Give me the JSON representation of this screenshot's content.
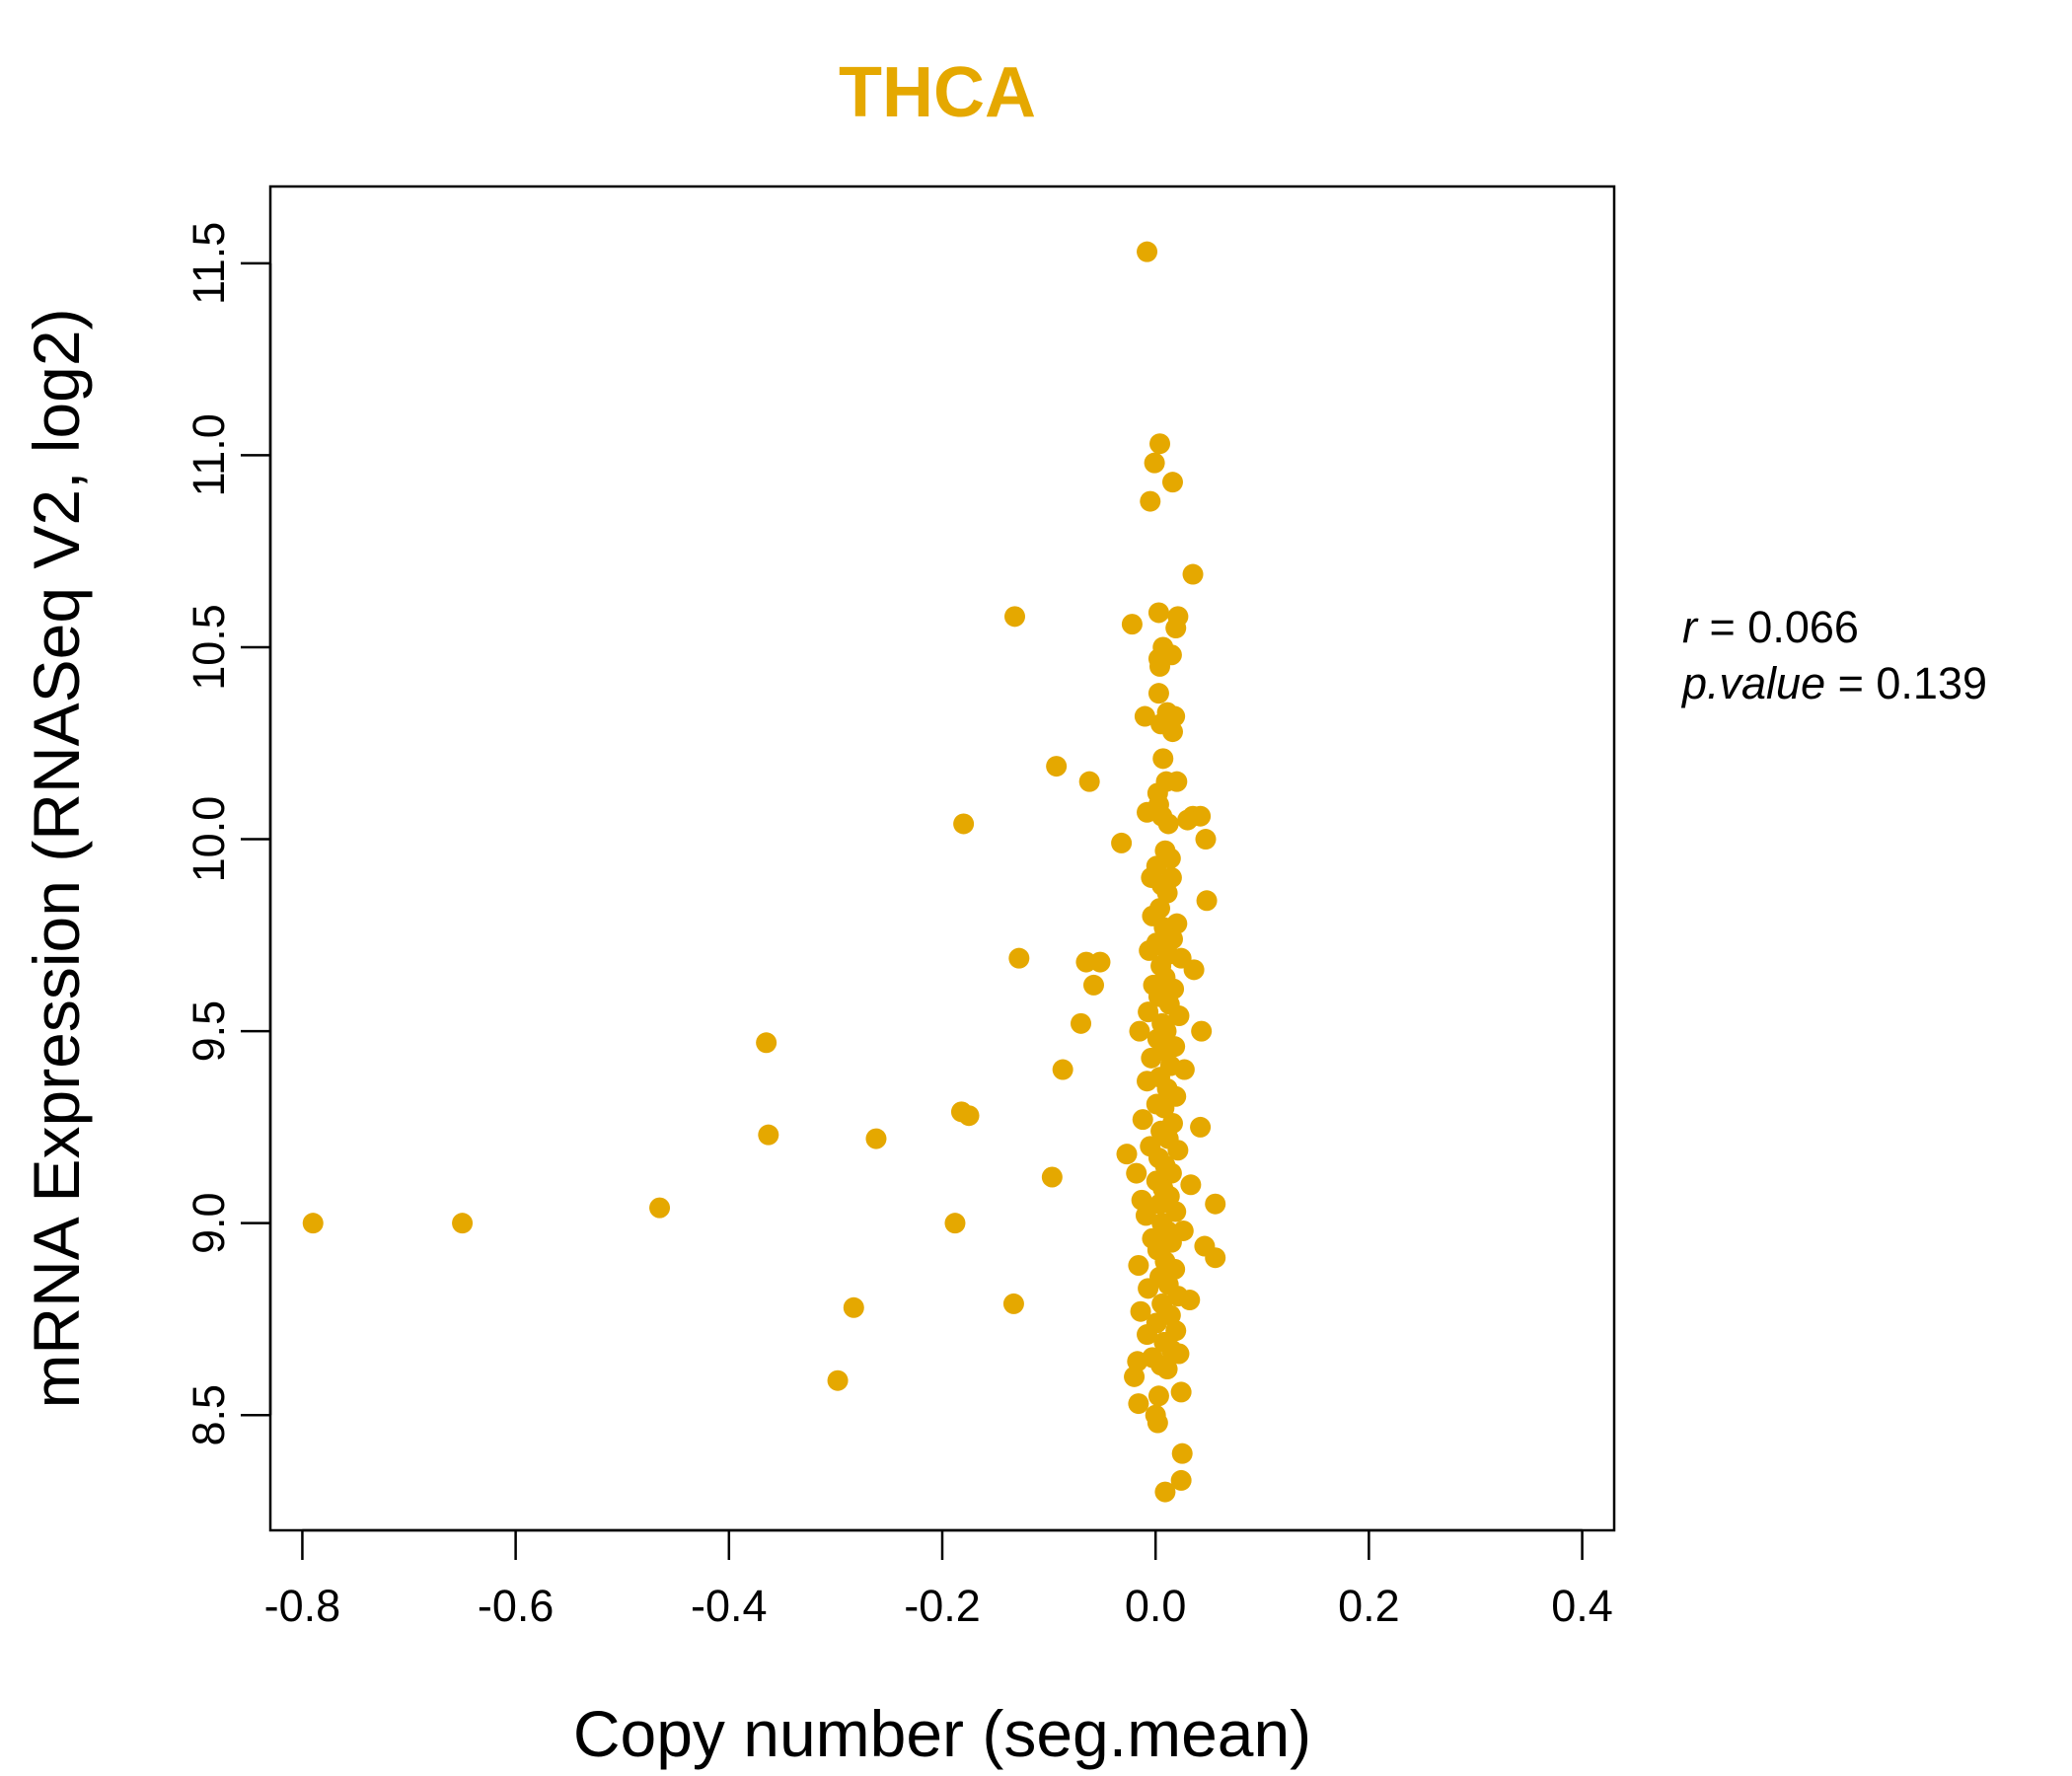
{
  "chart_data": {
    "type": "scatter",
    "title": "THCA",
    "xlabel": "Copy number (seg.mean)",
    "ylabel": "mRNA Expression (RNASeq V2, log2)",
    "xlim": [
      -0.83,
      0.43
    ],
    "ylim": [
      8.2,
      11.7
    ],
    "xticks": [
      -0.8,
      -0.6,
      -0.4,
      -0.2,
      0.0,
      0.2,
      0.4
    ],
    "xtick_labels": [
      "-0.8",
      "-0.6",
      "-0.4",
      "-0.2",
      "0.0",
      "0.2",
      "0.4"
    ],
    "yticks": [
      8.5,
      9.0,
      9.5,
      10.0,
      10.5,
      11.0,
      11.5
    ],
    "ytick_labels": [
      "8.5",
      "9.0",
      "9.5",
      "10.0",
      "10.5",
      "11.0",
      "11.5"
    ],
    "color": "#E5A800",
    "stats": {
      "r_label": "r",
      "r_value": "0.066",
      "p_label": "p.value",
      "p_value": "0.139"
    },
    "points": [
      [
        -0.79,
        9.0
      ],
      [
        -0.65,
        9.0
      ],
      [
        -0.465,
        9.04
      ],
      [
        -0.365,
        9.47
      ],
      [
        -0.363,
        9.23
      ],
      [
        -0.298,
        8.59
      ],
      [
        -0.283,
        8.78
      ],
      [
        -0.262,
        9.22
      ],
      [
        -0.188,
        9.0
      ],
      [
        -0.182,
        9.29
      ],
      [
        -0.18,
        10.04
      ],
      [
        -0.175,
        9.28
      ],
      [
        -0.133,
        8.79
      ],
      [
        -0.132,
        10.58
      ],
      [
        -0.128,
        9.69
      ],
      [
        -0.097,
        9.12
      ],
      [
        -0.093,
        10.19
      ],
      [
        -0.087,
        9.4
      ],
      [
        -0.07,
        9.52
      ],
      [
        -0.065,
        9.68
      ],
      [
        -0.062,
        10.15
      ],
      [
        -0.058,
        9.62
      ],
      [
        -0.052,
        9.68
      ],
      [
        -0.032,
        9.99
      ],
      [
        -0.022,
        10.56
      ],
      [
        -0.008,
        11.53
      ],
      [
        -0.005,
        10.88
      ],
      [
        -0.001,
        10.98
      ],
      [
        0.004,
        11.03
      ],
      [
        0.016,
        10.93
      ],
      [
        0.035,
        10.69
      ],
      [
        0.003,
        10.59
      ],
      [
        0.021,
        10.58
      ],
      [
        0.019,
        10.55
      ],
      [
        0.003,
        10.47
      ],
      [
        0.007,
        10.5
      ],
      [
        0.015,
        10.48
      ],
      [
        0.004,
        10.45
      ],
      [
        0.003,
        10.38
      ],
      [
        0.011,
        10.33
      ],
      [
        0.018,
        10.32
      ],
      [
        -0.01,
        10.32
      ],
      [
        0.016,
        10.28
      ],
      [
        0.005,
        10.3
      ],
      [
        0.007,
        10.21
      ],
      [
        0.01,
        10.15
      ],
      [
        0.02,
        10.15
      ],
      [
        0.002,
        10.12
      ],
      [
        0.003,
        10.09
      ],
      [
        -0.008,
        10.07
      ],
      [
        0.006,
        10.06
      ],
      [
        0.012,
        10.04
      ],
      [
        0.035,
        10.06
      ],
      [
        0.042,
        10.06
      ],
      [
        0.047,
        10.0
      ],
      [
        0.03,
        10.05
      ],
      [
        0.009,
        9.97
      ],
      [
        0.014,
        9.95
      ],
      [
        0.001,
        9.93
      ],
      [
        -0.004,
        9.9
      ],
      [
        0.015,
        9.9
      ],
      [
        0.006,
        9.88
      ],
      [
        0.011,
        9.86
      ],
      [
        0.048,
        9.84
      ],
      [
        0.004,
        9.82
      ],
      [
        -0.003,
        9.8
      ],
      [
        0.02,
        9.78
      ],
      [
        0.008,
        9.77
      ],
      [
        0.016,
        9.74
      ],
      [
        0.001,
        9.73
      ],
      [
        -0.006,
        9.71
      ],
      [
        0.012,
        9.7
      ],
      [
        0.024,
        9.69
      ],
      [
        0.005,
        9.67
      ],
      [
        0.036,
        9.66
      ],
      [
        0.009,
        9.64
      ],
      [
        -0.002,
        9.62
      ],
      [
        0.017,
        9.61
      ],
      [
        0.003,
        9.59
      ],
      [
        0.013,
        9.57
      ],
      [
        -0.007,
        9.55
      ],
      [
        0.022,
        9.54
      ],
      [
        0.006,
        9.52
      ],
      [
        0.01,
        9.5
      ],
      [
        -0.015,
        9.5
      ],
      [
        0.043,
        9.5
      ],
      [
        0.002,
        9.48
      ],
      [
        0.018,
        9.46
      ],
      [
        0.007,
        9.45
      ],
      [
        -0.004,
        9.43
      ],
      [
        0.014,
        9.41
      ],
      [
        0.027,
        9.4
      ],
      [
        0.004,
        9.38
      ],
      [
        -0.008,
        9.37
      ],
      [
        0.011,
        9.35
      ],
      [
        0.019,
        9.33
      ],
      [
        0.001,
        9.31
      ],
      [
        0.008,
        9.3
      ],
      [
        -0.012,
        9.27
      ],
      [
        0.016,
        9.26
      ],
      [
        0.042,
        9.25
      ],
      [
        0.005,
        9.24
      ],
      [
        0.012,
        9.22
      ],
      [
        -0.005,
        9.2
      ],
      [
        0.021,
        9.19
      ],
      [
        -0.027,
        9.18
      ],
      [
        0.003,
        9.17
      ],
      [
        0.009,
        9.15
      ],
      [
        0.015,
        9.13
      ],
      [
        -0.018,
        9.13
      ],
      [
        0.001,
        9.11
      ],
      [
        0.033,
        9.1
      ],
      [
        0.007,
        9.09
      ],
      [
        0.013,
        9.07
      ],
      [
        -0.013,
        9.06
      ],
      [
        0.004,
        9.05
      ],
      [
        0.056,
        9.05
      ],
      [
        0.019,
        9.03
      ],
      [
        -0.009,
        9.02
      ],
      [
        0.006,
        9.0
      ],
      [
        0.011,
        8.98
      ],
      [
        0.026,
        8.98
      ],
      [
        -0.003,
        8.96
      ],
      [
        0.015,
        8.95
      ],
      [
        0.046,
        8.94
      ],
      [
        0.002,
        8.93
      ],
      [
        0.056,
        8.91
      ],
      [
        0.009,
        8.9
      ],
      [
        -0.016,
        8.89
      ],
      [
        0.018,
        8.88
      ],
      [
        0.004,
        8.86
      ],
      [
        0.012,
        8.84
      ],
      [
        -0.007,
        8.83
      ],
      [
        0.021,
        8.81
      ],
      [
        0.032,
        8.8
      ],
      [
        0.006,
        8.79
      ],
      [
        -0.014,
        8.77
      ],
      [
        0.014,
        8.76
      ],
      [
        0.001,
        8.74
      ],
      [
        0.019,
        8.72
      ],
      [
        -0.008,
        8.71
      ],
      [
        0.008,
        8.69
      ],
      [
        0.015,
        8.67
      ],
      [
        0.022,
        8.66
      ],
      [
        -0.003,
        8.65
      ],
      [
        0.005,
        8.63
      ],
      [
        -0.017,
        8.64
      ],
      [
        0.011,
        8.62
      ],
      [
        -0.02,
        8.6
      ],
      [
        0.024,
        8.56
      ],
      [
        0.003,
        8.55
      ],
      [
        -0.016,
        8.53
      ],
      [
        0.0,
        8.5
      ],
      [
        0.002,
        8.48
      ],
      [
        0.025,
        8.4
      ],
      [
        0.024,
        8.33
      ],
      [
        0.009,
        8.3
      ]
    ]
  }
}
